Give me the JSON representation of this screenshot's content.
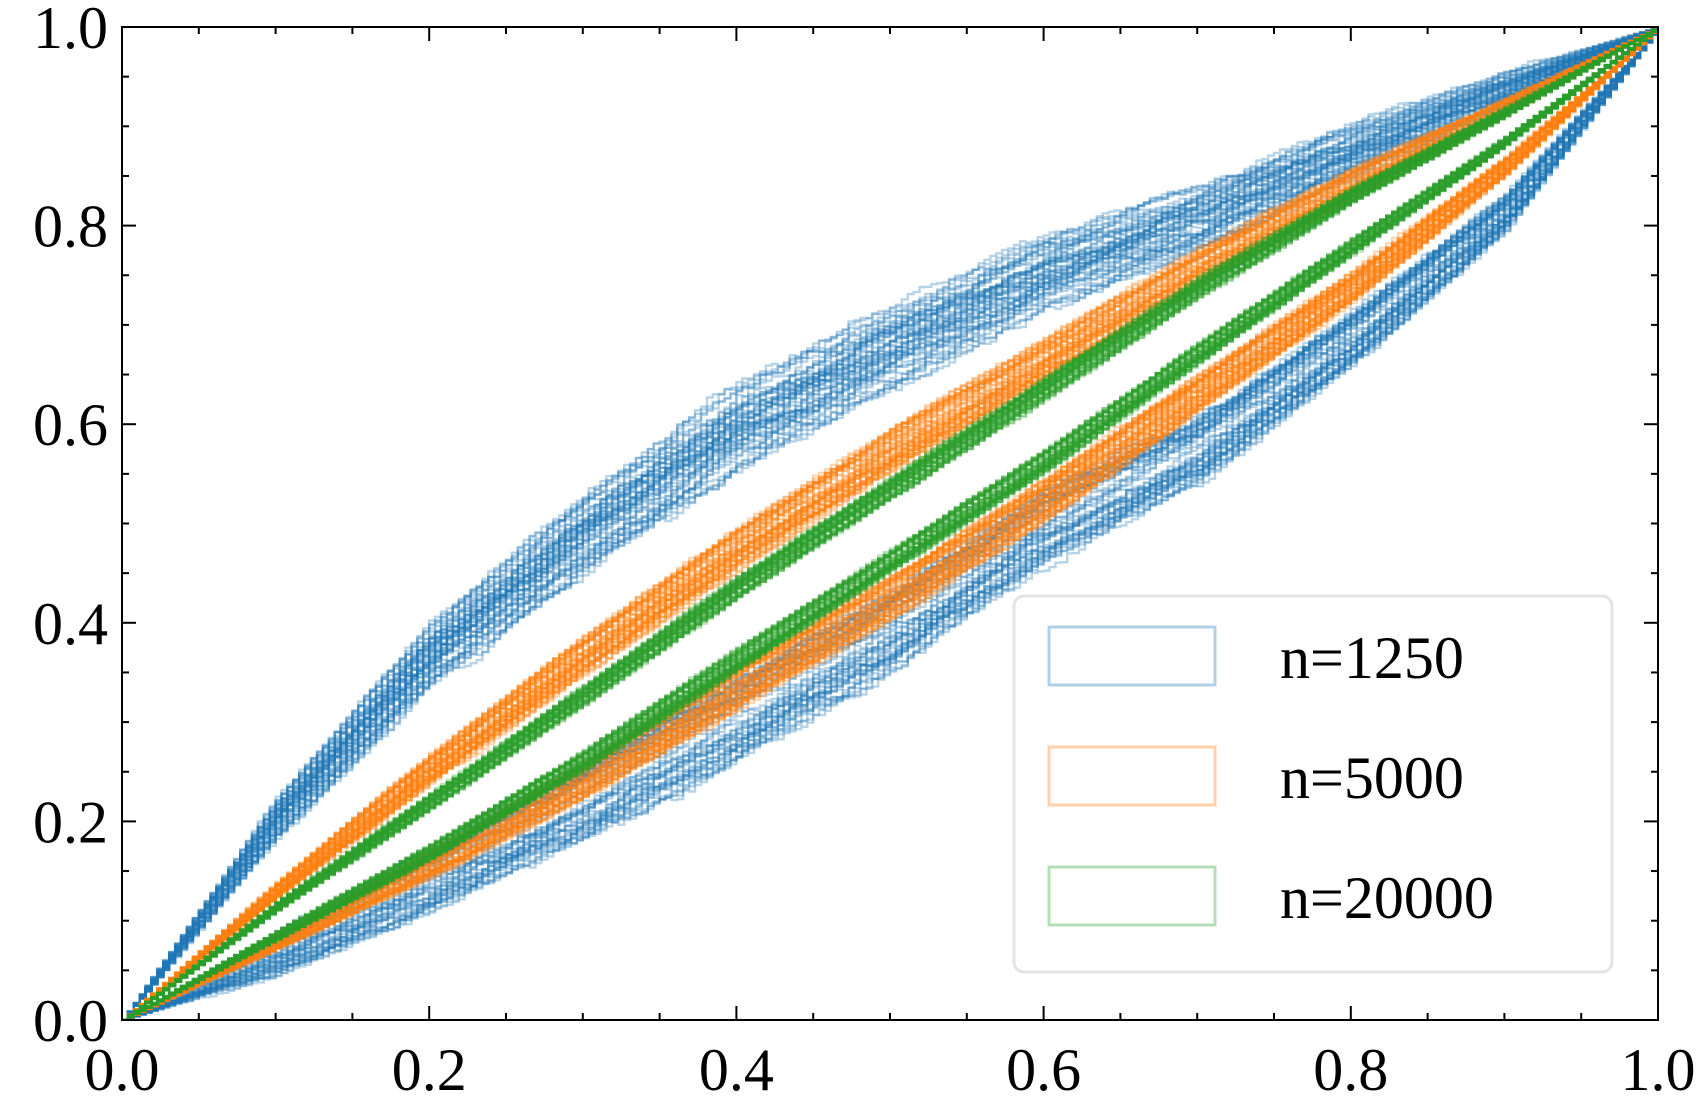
{
  "chart_data": {
    "type": "line",
    "title": "",
    "xlabel": "",
    "ylabel": "",
    "xlim": [
      0.0,
      1.0
    ],
    "ylim": [
      0.0,
      1.0
    ],
    "x_ticks": [
      "0.0",
      "0.2",
      "0.4",
      "0.6",
      "0.8",
      "1.0"
    ],
    "y_ticks": [
      "0.0",
      "0.2",
      "0.4",
      "0.6",
      "0.8",
      "1.0"
    ],
    "grid": false,
    "tick_direction": "in",
    "minor_ticks": true,
    "legend_position": "lower-right",
    "series": [
      {
        "name": "n=1250",
        "color": "#1f77b4",
        "curve_count": 100,
        "x": [
          0.0,
          0.1,
          0.2,
          0.3,
          0.4,
          0.5,
          0.6,
          0.7,
          0.8,
          0.9,
          1.0
        ],
        "band_upper": [
          0.0,
          0.23,
          0.41,
          0.54,
          0.65,
          0.73,
          0.8,
          0.85,
          0.91,
          0.96,
          1.0
        ],
        "band_lower": [
          0.0,
          0.04,
          0.1,
          0.17,
          0.25,
          0.34,
          0.45,
          0.53,
          0.65,
          0.79,
          1.0
        ]
      },
      {
        "name": "n=5000",
        "color": "#ff7f0e",
        "curve_count": 100,
        "x": [
          0.0,
          0.1,
          0.2,
          0.3,
          0.4,
          0.5,
          0.6,
          0.7,
          0.8,
          0.9,
          1.0
        ],
        "band_upper": [
          0.0,
          0.14,
          0.27,
          0.39,
          0.5,
          0.6,
          0.69,
          0.78,
          0.86,
          0.93,
          1.0
        ],
        "band_lower": [
          0.0,
          0.07,
          0.14,
          0.22,
          0.31,
          0.4,
          0.5,
          0.61,
          0.72,
          0.85,
          1.0
        ]
      },
      {
        "name": "n=20000",
        "color": "#2ca02c",
        "curve_count": 100,
        "x": [
          0.0,
          0.1,
          0.2,
          0.3,
          0.4,
          0.5,
          0.6,
          0.7,
          0.8,
          0.9,
          1.0
        ],
        "band_upper": [
          0.0,
          0.12,
          0.23,
          0.34,
          0.45,
          0.55,
          0.65,
          0.75,
          0.84,
          0.92,
          1.0
        ],
        "band_lower": [
          0.0,
          0.08,
          0.16,
          0.25,
          0.35,
          0.45,
          0.55,
          0.66,
          0.77,
          0.88,
          1.0
        ]
      }
    ]
  }
}
